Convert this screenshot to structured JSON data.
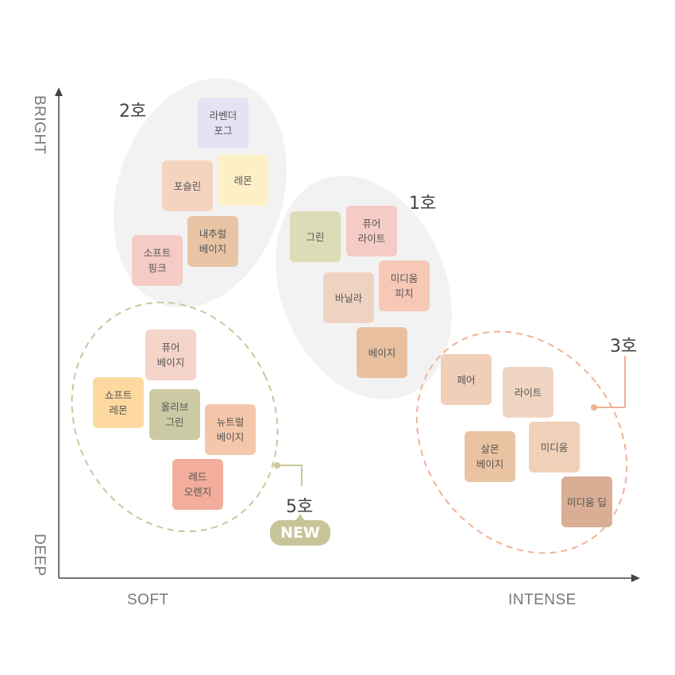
{
  "axes": {
    "y_top": "BRIGHT",
    "y_bottom": "DEEP",
    "x_left": "SOFT",
    "x_right": "INTENSE"
  },
  "groups": [
    {
      "label": "2호",
      "swatches": [
        {
          "name": "라벤더\n포그",
          "color": "#e6e1f3"
        },
        {
          "name": "포슬린",
          "color": "#f5d4bf"
        },
        {
          "name": "레몬",
          "color": "#fdf0c7"
        },
        {
          "name": "내추럴\n베이지",
          "color": "#e8c3a4"
        },
        {
          "name": "소프트\n핑크",
          "color": "#f6cac5"
        }
      ]
    },
    {
      "label": "1호",
      "swatches": [
        {
          "name": "그린",
          "color": "#dcdcb6"
        },
        {
          "name": "퓨어\n라이트",
          "color": "#f4cbc5"
        },
        {
          "name": "미디움\n피치",
          "color": "#f7c8b6"
        },
        {
          "name": "바닐라",
          "color": "#efd3c2"
        },
        {
          "name": "베이지",
          "color": "#e8c0a0"
        }
      ]
    },
    {
      "label": "5호",
      "badge": "NEW",
      "swatches": [
        {
          "name": "퓨어\n베이지",
          "color": "#f5d4ca"
        },
        {
          "name": "쇼프트\n레몬",
          "color": "#fdd9a0"
        },
        {
          "name": "올리브\n그린",
          "color": "#cccaa4"
        },
        {
          "name": "뉴트럴\n베이지",
          "color": "#f4c7ab"
        },
        {
          "name": "레드\n오렌지",
          "color": "#f2ad9c"
        }
      ]
    },
    {
      "label": "3호",
      "swatches": [
        {
          "name": "페어",
          "color": "#efcfb8"
        },
        {
          "name": "라이트",
          "color": "#f0d6c2"
        },
        {
          "name": "살몬\n베이지",
          "color": "#eac3a2"
        },
        {
          "name": "미디움",
          "color": "#f0d0b8"
        },
        {
          "name": "미디움 딥",
          "color": "#d9ae94"
        }
      ]
    }
  ],
  "colors": {
    "group_bg": "#f2f2f2",
    "green_dash": "#c9c79c",
    "orange_dash": "#efb295",
    "axis": "#444444"
  }
}
